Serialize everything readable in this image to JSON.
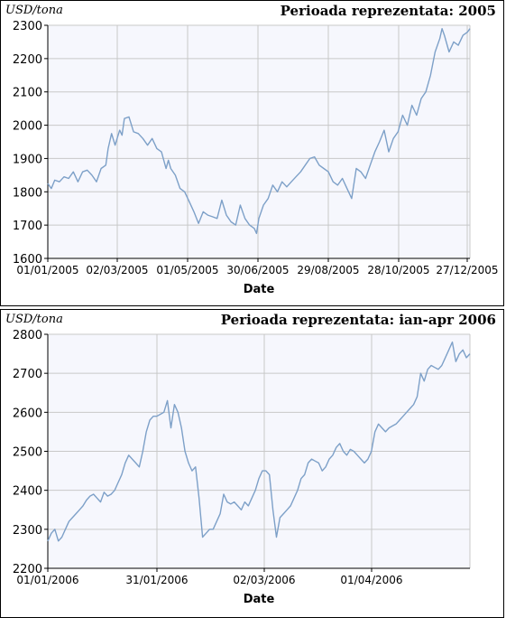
{
  "chart_data": [
    {
      "type": "line",
      "unit_label": "USD/tona",
      "title": "Perioada reprezentata: 2005",
      "xlabel": "Date",
      "ylabel": "",
      "ylim": [
        1600,
        2300
      ],
      "yticks": [
        "1600",
        "1700",
        "1800",
        "1900",
        "2000",
        "2100",
        "2200",
        "2300"
      ],
      "xticks": [
        "01/01/2005",
        "02/03/2005",
        "01/05/2005",
        "30/06/2005",
        "29/08/2005",
        "28/10/2005",
        "27/12/2005"
      ],
      "grid": true,
      "series": [
        {
          "color": "#7da0c8",
          "x": [
            0,
            3,
            6,
            10,
            14,
            18,
            22,
            26,
            30,
            34,
            38,
            42,
            46,
            50,
            52,
            55,
            58,
            62,
            64,
            66,
            70,
            74,
            78,
            82,
            86,
            90,
            94,
            98,
            102,
            104,
            106,
            110,
            114,
            118,
            122,
            126,
            130,
            134,
            138,
            142,
            146,
            150,
            154,
            158,
            162,
            166,
            170,
            174,
            178,
            180,
            182,
            186,
            190,
            194,
            198,
            202,
            206,
            210,
            214,
            218,
            222,
            226,
            230,
            234,
            238,
            242,
            246,
            250,
            254,
            258,
            262,
            266,
            270,
            274,
            278,
            282,
            286,
            290,
            294,
            298,
            302,
            306,
            310,
            314,
            318,
            322,
            326,
            330,
            334,
            338,
            340,
            342,
            346,
            350,
            354,
            358,
            362,
            364
          ],
          "y": [
            1825,
            1810,
            1835,
            1830,
            1845,
            1840,
            1860,
            1830,
            1860,
            1865,
            1850,
            1830,
            1870,
            1880,
            1930,
            1975,
            1940,
            1985,
            1970,
            2020,
            2025,
            1980,
            1975,
            1960,
            1940,
            1960,
            1930,
            1920,
            1870,
            1895,
            1870,
            1850,
            1810,
            1800,
            1770,
            1740,
            1705,
            1740,
            1730,
            1725,
            1720,
            1775,
            1730,
            1710,
            1700,
            1760,
            1720,
            1700,
            1690,
            1675,
            1720,
            1760,
            1780,
            1820,
            1800,
            1830,
            1815,
            1830,
            1845,
            1860,
            1880,
            1900,
            1905,
            1880,
            1870,
            1860,
            1830,
            1820,
            1840,
            1810,
            1780,
            1870,
            1860,
            1840,
            1880,
            1920,
            1950,
            1985,
            1920,
            1960,
            1980,
            2030,
            2000,
            2060,
            2030,
            2080,
            2100,
            2150,
            2220,
            2260,
            2290,
            2270,
            2220,
            2250,
            2240,
            2270,
            2280,
            2290
          ]
        }
      ]
    },
    {
      "type": "line",
      "unit_label": "USD/tona",
      "title": "Perioada reprezentata: ian-apr 2006",
      "xlabel": "Date",
      "ylabel": "",
      "ylim": [
        2200,
        2800
      ],
      "yticks": [
        "2200",
        "2300",
        "2400",
        "2500",
        "2600",
        "2700",
        "2800"
      ],
      "xticks": [
        "01/01/2006",
        "31/01/2006",
        "02/03/2006",
        "01/04/2006"
      ],
      "grid": true,
      "series": [
        {
          "color": "#7da0c8",
          "x": [
            0,
            1,
            2,
            3,
            4,
            5,
            6,
            7,
            8,
            9,
            10,
            11,
            12,
            13,
            14,
            15,
            16,
            17,
            18,
            19,
            20,
            21,
            22,
            23,
            24,
            25,
            26,
            27,
            28,
            29,
            30,
            31,
            32,
            33,
            34,
            35,
            36,
            37,
            38,
            39,
            40,
            41,
            42,
            43,
            44,
            45,
            46,
            47,
            48,
            49,
            50,
            51,
            52,
            53,
            54,
            55,
            56,
            57,
            58,
            59,
            60,
            61,
            62,
            63,
            64,
            65,
            66,
            67,
            68,
            69,
            70,
            71,
            72,
            73,
            74,
            75,
            76,
            77,
            78,
            79,
            80,
            81,
            82,
            83,
            84,
            85,
            86,
            87,
            88,
            89,
            90,
            91,
            92,
            93,
            94,
            95,
            96,
            97,
            98,
            99,
            100,
            101,
            102,
            103,
            104,
            105,
            106,
            107,
            108,
            109,
            110,
            111,
            112,
            113,
            114,
            115,
            116,
            117,
            118,
            119,
            120
          ],
          "y": [
            2270,
            2290,
            2300,
            2270,
            2280,
            2300,
            2320,
            2330,
            2340,
            2350,
            2360,
            2375,
            2385,
            2390,
            2380,
            2370,
            2395,
            2385,
            2390,
            2400,
            2420,
            2440,
            2470,
            2490,
            2480,
            2470,
            2460,
            2500,
            2550,
            2580,
            2590,
            2590,
            2595,
            2600,
            2630,
            2560,
            2620,
            2600,
            2560,
            2500,
            2470,
            2450,
            2460,
            2380,
            2280,
            2290,
            2300,
            2300,
            2320,
            2340,
            2390,
            2370,
            2365,
            2370,
            2360,
            2350,
            2370,
            2360,
            2380,
            2400,
            2430,
            2450,
            2450,
            2440,
            2350,
            2280,
            2330,
            2340,
            2350,
            2360,
            2380,
            2400,
            2430,
            2440,
            2470,
            2480,
            2475,
            2470,
            2450,
            2460,
            2480,
            2490,
            2510,
            2520,
            2500,
            2490,
            2505,
            2500,
            2490,
            2480,
            2470,
            2480,
            2500,
            2550,
            2570,
            2560,
            2550,
            2560,
            2565,
            2570,
            2580,
            2590,
            2600,
            2610,
            2620,
            2640,
            2700,
            2680,
            2710,
            2720,
            2715,
            2710,
            2720,
            2740,
            2760,
            2780,
            2730,
            2750,
            2760,
            2740,
            2750
          ]
        }
      ]
    }
  ]
}
